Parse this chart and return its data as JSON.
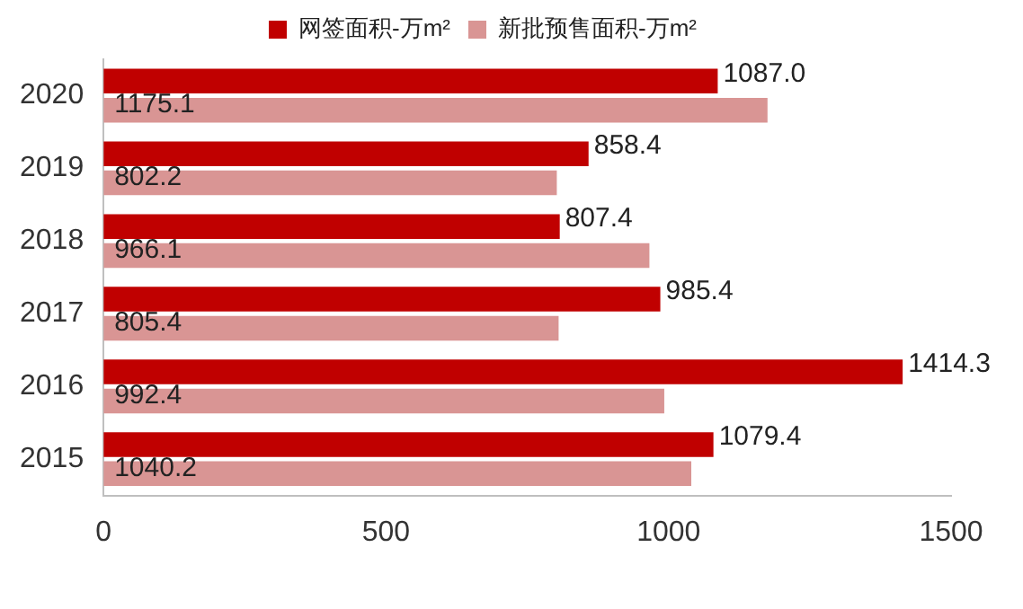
{
  "chart_data": {
    "type": "bar",
    "orientation": "horizontal",
    "categories": [
      "2020",
      "2019",
      "2018",
      "2017",
      "2016",
      "2015"
    ],
    "series": [
      {
        "name": "网签面积-万m²",
        "color": "#c00000",
        "values": [
          1087.0,
          858.4,
          807.4,
          985.4,
          1414.3,
          1079.4
        ],
        "value_labels": [
          "1087.0",
          "858.4",
          "807.4",
          "985.4",
          "1414.3",
          "1079.4"
        ]
      },
      {
        "name": "新批预售面积-万m²",
        "color": "#d99594",
        "values": [
          1175.1,
          802.2,
          966.1,
          805.4,
          992.4,
          1040.2
        ],
        "value_labels": [
          "1175.1",
          "802.2",
          "966.1",
          "805.4",
          "992.4",
          "1040.2"
        ]
      }
    ],
    "xlim": [
      0,
      1500
    ],
    "xticks": [
      0,
      500,
      1000,
      1500
    ],
    "grid": false,
    "legend": "top"
  }
}
